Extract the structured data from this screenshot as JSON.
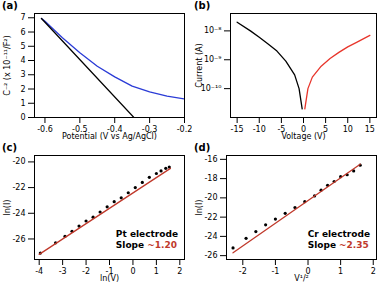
{
  "chart_data": [
    {
      "type": "line",
      "title": "(a)",
      "x_label": "Potential (V vs Ag/AgCl)",
      "y_label": "C⁻² (x 10⁻¹¹/F²)",
      "xlim": [
        -0.63,
        -0.2
      ],
      "ylim": [
        0,
        7.3
      ],
      "xticks": [
        -0.6,
        -0.5,
        -0.4,
        -0.3,
        -0.2
      ],
      "yticks": [
        0,
        1,
        2,
        3,
        4,
        5,
        6,
        7
      ],
      "series": [
        {
          "type": "line",
          "color": "#2a3bd6",
          "x": [
            -0.61,
            -0.6,
            -0.55,
            -0.5,
            -0.45,
            -0.4,
            -0.35,
            -0.3,
            -0.25,
            -0.2
          ],
          "values": [
            6.95,
            6.75,
            5.6,
            4.55,
            3.6,
            2.85,
            2.2,
            1.8,
            1.5,
            1.3
          ]
        },
        {
          "type": "line",
          "color": "#000000",
          "x": [
            -0.61,
            -0.345
          ],
          "values": [
            6.95,
            0
          ]
        }
      ]
    },
    {
      "type": "line",
      "title": "(b)",
      "log": "y",
      "x_label": "Voltage (V)",
      "y_label": "Current (A)",
      "xlim": [
        -16.5,
        16.5
      ],
      "ylim": [
        1e-11,
        4e-08
      ],
      "xticks": [
        -15,
        -10,
        -5,
        0,
        5,
        10,
        15
      ],
      "yticks": [
        {
          "value": 1e-10,
          "label": "10⁻¹⁰"
        },
        {
          "value": 1e-09,
          "label": "10⁻⁹"
        },
        {
          "value": 1e-08,
          "label": "10⁻⁸"
        }
      ],
      "series": [
        {
          "type": "line",
          "color": "#000000",
          "x": [
            -15,
            -12,
            -10,
            -8,
            -6,
            -4,
            -2,
            -1,
            -0.3
          ],
          "values": [
            2e-08,
            1e-08,
            6e-09,
            3.5e-09,
            2e-09,
            9e-10,
            3e-10,
            1e-10,
            2e-11
          ]
        },
        {
          "type": "line",
          "color": "#e8352b",
          "x": [
            0.3,
            1,
            2,
            4,
            6,
            8,
            10,
            12,
            15
          ],
          "values": [
            2e-11,
            1e-10,
            2.5e-10,
            6e-10,
            1.1e-09,
            1.8e-09,
            2.8e-09,
            4e-09,
            7e-09
          ]
        }
      ]
    },
    {
      "type": "scatter",
      "title": "(c)",
      "x_label": "ln(V)",
      "y_label": "ln(I)",
      "xlim": [
        -4.2,
        2.2
      ],
      "ylim": [
        -27.6,
        -19.5
      ],
      "xticks": [
        -4,
        -3,
        -2,
        -1,
        0,
        1,
        2
      ],
      "yticks": [
        -26,
        -24,
        -22,
        -20
      ],
      "annotations": [
        {
          "text": "Pt electrode"
        },
        {
          "text": "Slope"
        },
        {
          "text": "~1.20",
          "color": "#c0392b"
        }
      ],
      "series": [
        {
          "type": "scatter",
          "color": "#000000",
          "marker": "circle",
          "x": [
            -3.95,
            -3.3,
            -2.9,
            -2.6,
            -2.3,
            -2.0,
            -1.7,
            -1.4,
            -1.1,
            -0.8,
            -0.5,
            -0.2,
            0.1,
            0.4,
            0.7,
            1.0,
            1.2,
            1.4,
            1.55
          ],
          "values": [
            -27.1,
            -26.3,
            -25.8,
            -25.4,
            -25.0,
            -24.6,
            -24.3,
            -23.9,
            -23.5,
            -23.1,
            -22.8,
            -22.4,
            -22.0,
            -21.6,
            -21.2,
            -20.9,
            -20.7,
            -20.5,
            -20.4
          ]
        },
        {
          "type": "line",
          "color": "#c0392b",
          "x": [
            -4,
            1.6
          ],
          "values": [
            -27.2,
            -20.5
          ]
        }
      ]
    },
    {
      "type": "scatter",
      "title": "(d)",
      "x_label": "V¹/²",
      "y_label": "ln(I)",
      "xlim": [
        -2.5,
        2.1
      ],
      "ylim": [
        -26.4,
        -15.6
      ],
      "xticks": [
        -2,
        -1,
        0,
        1,
        2
      ],
      "yticks": [
        -26,
        -24,
        -22,
        -20,
        -18,
        -16
      ],
      "annotations": [
        {
          "text": "Cr electrode"
        },
        {
          "text": "Slope"
        },
        {
          "text": "~2.35",
          "color": "#c0392b"
        }
      ],
      "series": [
        {
          "type": "scatter",
          "color": "#000000",
          "marker": "circle",
          "x": [
            -2.3,
            -1.9,
            -1.6,
            -1.3,
            -1.0,
            -0.7,
            -0.4,
            -0.1,
            0.2,
            0.4,
            0.6,
            0.8,
            1.0,
            1.2,
            1.4,
            1.6
          ],
          "values": [
            -25.2,
            -24.2,
            -23.5,
            -22.8,
            -22.2,
            -21.6,
            -21.0,
            -20.4,
            -19.8,
            -19.2,
            -18.7,
            -18.3,
            -17.8,
            -17.6,
            -17.2,
            -16.6
          ]
        },
        {
          "type": "line",
          "color": "#c0392b",
          "x": [
            -2.3,
            1.6
          ],
          "values": [
            -25.7,
            -16.5
          ]
        }
      ]
    }
  ]
}
